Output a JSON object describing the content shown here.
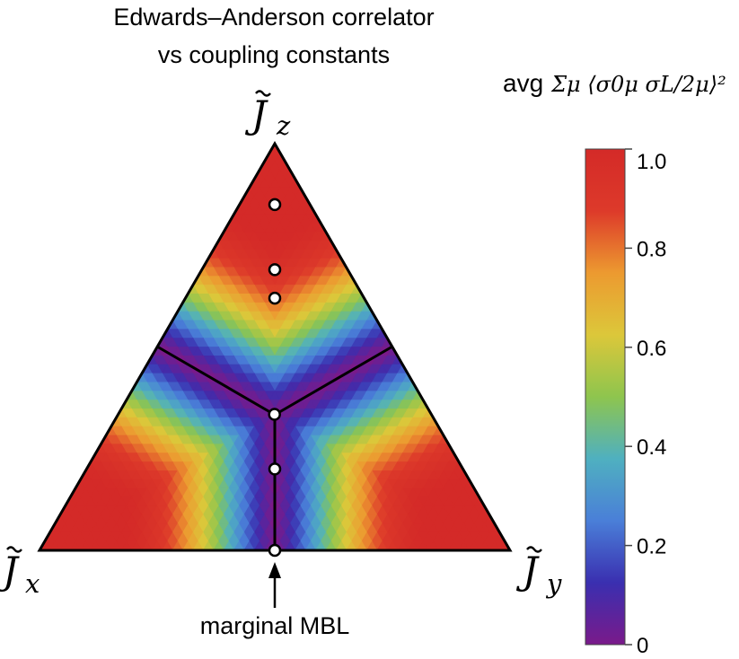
{
  "chart_data": {
    "type": "heatmap",
    "title_lines": [
      "Edwards–Anderson correlator",
      "vs coupling constants"
    ],
    "vertices": {
      "top": {
        "base": "J",
        "sub": "z"
      },
      "left": {
        "base": "J",
        "sub": "x"
      },
      "right": {
        "base": "J",
        "sub": "y"
      }
    },
    "colorbar": {
      "label_prefix": "avg",
      "label_formula": "Σμ ⟨σ0μ σL/2μ⟩²",
      "range": [
        0,
        1
      ],
      "ticks": [
        "1.0",
        "0.8",
        "0.6",
        "0.4",
        "0.2",
        "0"
      ],
      "colors": [
        "#7a1a8a",
        "#3a2fb0",
        "#4a7fd8",
        "#4fb0c0",
        "#8ec54e",
        "#dcc73a",
        "#ec9a30",
        "#dd3a2a",
        "#d42a28"
      ]
    },
    "phase_boundary": "lines from triangle center to each edge midpoint",
    "points": [
      {
        "jx": 0.075,
        "jy": 0.075,
        "jz": 0.85
      },
      {
        "jx": 0.155,
        "jy": 0.155,
        "jz": 0.69
      },
      {
        "jx": 0.19,
        "jy": 0.19,
        "jz": 0.62
      },
      {
        "jx": 0.333,
        "jy": 0.333,
        "jz": 0.333
      },
      {
        "jx": 0.4,
        "jy": 0.4,
        "jz": 0.2
      },
      {
        "jx": 0.5,
        "jy": 0.5,
        "jz": 0.0
      }
    ],
    "annotation": {
      "text": "marginal MBL",
      "target": {
        "jx": 0.5,
        "jy": 0.5,
        "jz": 0.0
      }
    }
  }
}
